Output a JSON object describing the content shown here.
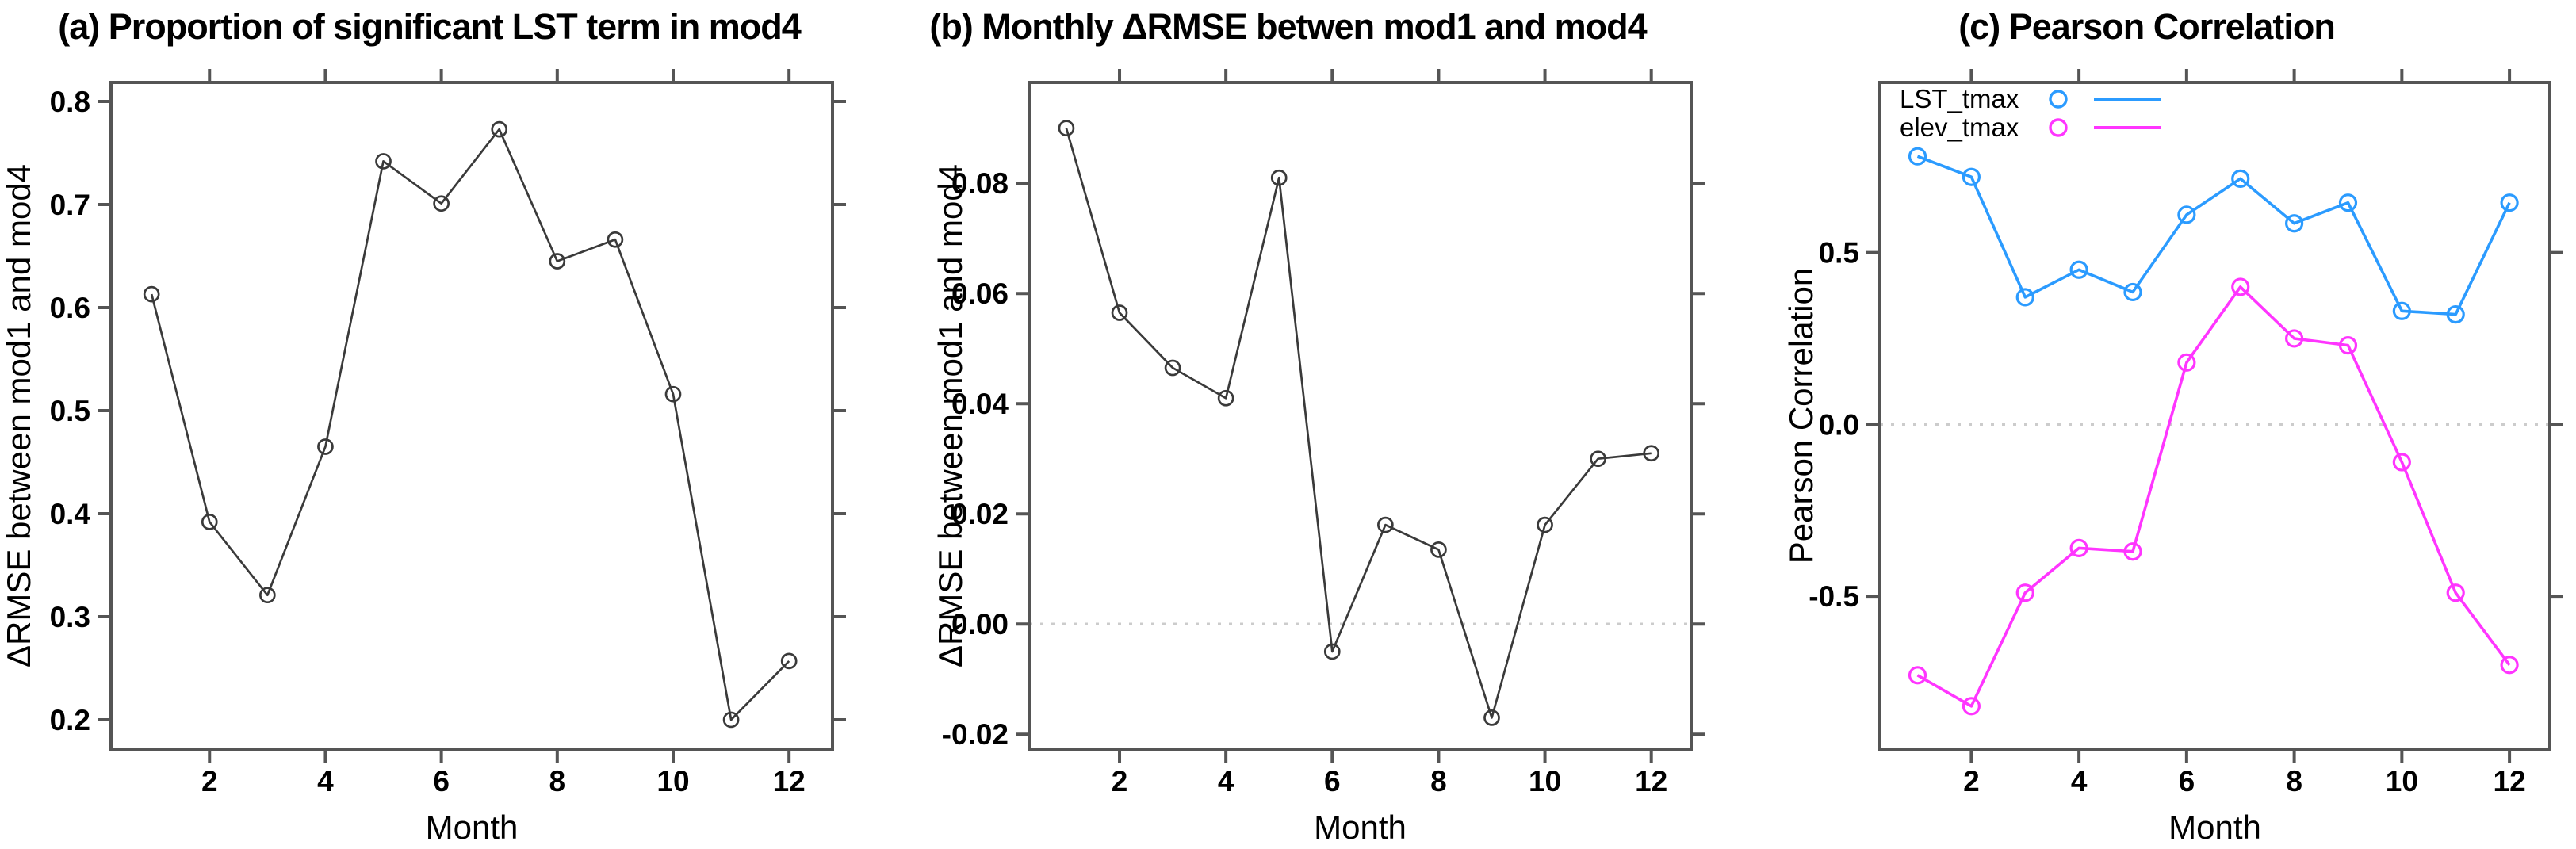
{
  "colors": {
    "background": "#ffffff",
    "axis": "#555555",
    "black_series": "#3a3a3a",
    "lst_blue": "#2b9bff",
    "elev_magenta": "#ff35ff",
    "zero_line": "#cccccc",
    "text": "#000000"
  },
  "chart_data": [
    {
      "type": "line",
      "title": "(a) Proportion of significant LST term in mod4",
      "xlabel": "Month",
      "ylabel": "ΔRMSE between mod1 and mod4",
      "x": [
        1,
        2,
        3,
        4,
        5,
        6,
        7,
        8,
        9,
        10,
        11,
        12
      ],
      "xlim": [
        0.3,
        12.75
      ],
      "ylim": [
        0.1715,
        0.8185
      ],
      "xticks": [
        2,
        4,
        6,
        8,
        10,
        12
      ],
      "xtick_labels": [
        "2",
        "4",
        "6",
        "8",
        "10",
        "12"
      ],
      "yticks": [
        0.2,
        0.3,
        0.4,
        0.5,
        0.6,
        0.7,
        0.8
      ],
      "ytick_labels": [
        "0.2",
        "0.3",
        "0.4",
        "0.5",
        "0.6",
        "0.7",
        "0.8"
      ],
      "grid": false,
      "zero_line": false,
      "series": [
        {
          "name": "",
          "color": "#3a3a3a",
          "marker": "open-circle",
          "values": [
            0.613,
            0.392,
            0.321,
            0.465,
            0.742,
            0.701,
            0.773,
            0.645,
            0.666,
            0.516,
            0.2,
            0.257
          ]
        }
      ]
    },
    {
      "type": "line",
      "title": "(b) Monthly ΔRMSE betwen mod1 and mod4",
      "xlabel": "Month",
      "ylabel": "ΔRMSE between mod1 and mod4",
      "x": [
        1,
        2,
        3,
        4,
        5,
        6,
        7,
        8,
        9,
        10,
        11,
        12
      ],
      "xlim": [
        0.3,
        12.75
      ],
      "ylim": [
        -0.0227,
        0.0983
      ],
      "xticks": [
        2,
        4,
        6,
        8,
        10,
        12
      ],
      "xtick_labels": [
        "2",
        "4",
        "6",
        "8",
        "10",
        "12"
      ],
      "yticks": [
        -0.02,
        0.0,
        0.02,
        0.04,
        0.06,
        0.08
      ],
      "ytick_labels": [
        "-0.02",
        "0.00",
        "0.02",
        "0.04",
        "0.06",
        "0.08"
      ],
      "grid": false,
      "zero_line": true,
      "series": [
        {
          "name": "",
          "color": "#3a3a3a",
          "marker": "open-circle",
          "values": [
            0.09,
            0.0565,
            0.0465,
            0.041,
            0.081,
            -0.005,
            0.018,
            0.0135,
            -0.017,
            0.018,
            0.03,
            0.031
          ]
        }
      ]
    },
    {
      "type": "line",
      "title": "(c) Pearson Correlation",
      "xlabel": "Month",
      "ylabel": "Pearson Correlation",
      "x": [
        1,
        2,
        3,
        4,
        5,
        6,
        7,
        8,
        9,
        10,
        11,
        12
      ],
      "xlim": [
        0.3,
        12.75
      ],
      "ylim": [
        -0.945,
        0.995
      ],
      "xticks": [
        2,
        4,
        6,
        8,
        10,
        12
      ],
      "xtick_labels": [
        "2",
        "4",
        "6",
        "8",
        "10",
        "12"
      ],
      "yticks": [
        -0.5,
        0.0,
        0.5
      ],
      "ytick_labels": [
        "-0.5",
        "0.0",
        "0.5"
      ],
      "grid": false,
      "zero_line": true,
      "legend_position": "topleft",
      "legend": [
        {
          "label": "LST_tmax",
          "color": "#2b9bff"
        },
        {
          "label": "elev_tmax",
          "color": "#ff35ff"
        }
      ],
      "series": [
        {
          "name": "LST_tmax",
          "color": "#2b9bff",
          "marker": "open-circle",
          "values": [
            0.78,
            0.72,
            0.37,
            0.45,
            0.385,
            0.61,
            0.715,
            0.585,
            0.645,
            0.33,
            0.32,
            0.645
          ]
        },
        {
          "name": "elev_tmax",
          "color": "#ff35ff",
          "marker": "open-circle",
          "values": [
            -0.73,
            -0.82,
            -0.49,
            -0.36,
            -0.37,
            0.18,
            0.4,
            0.25,
            0.23,
            -0.11,
            -0.49,
            -0.7
          ]
        }
      ]
    }
  ]
}
